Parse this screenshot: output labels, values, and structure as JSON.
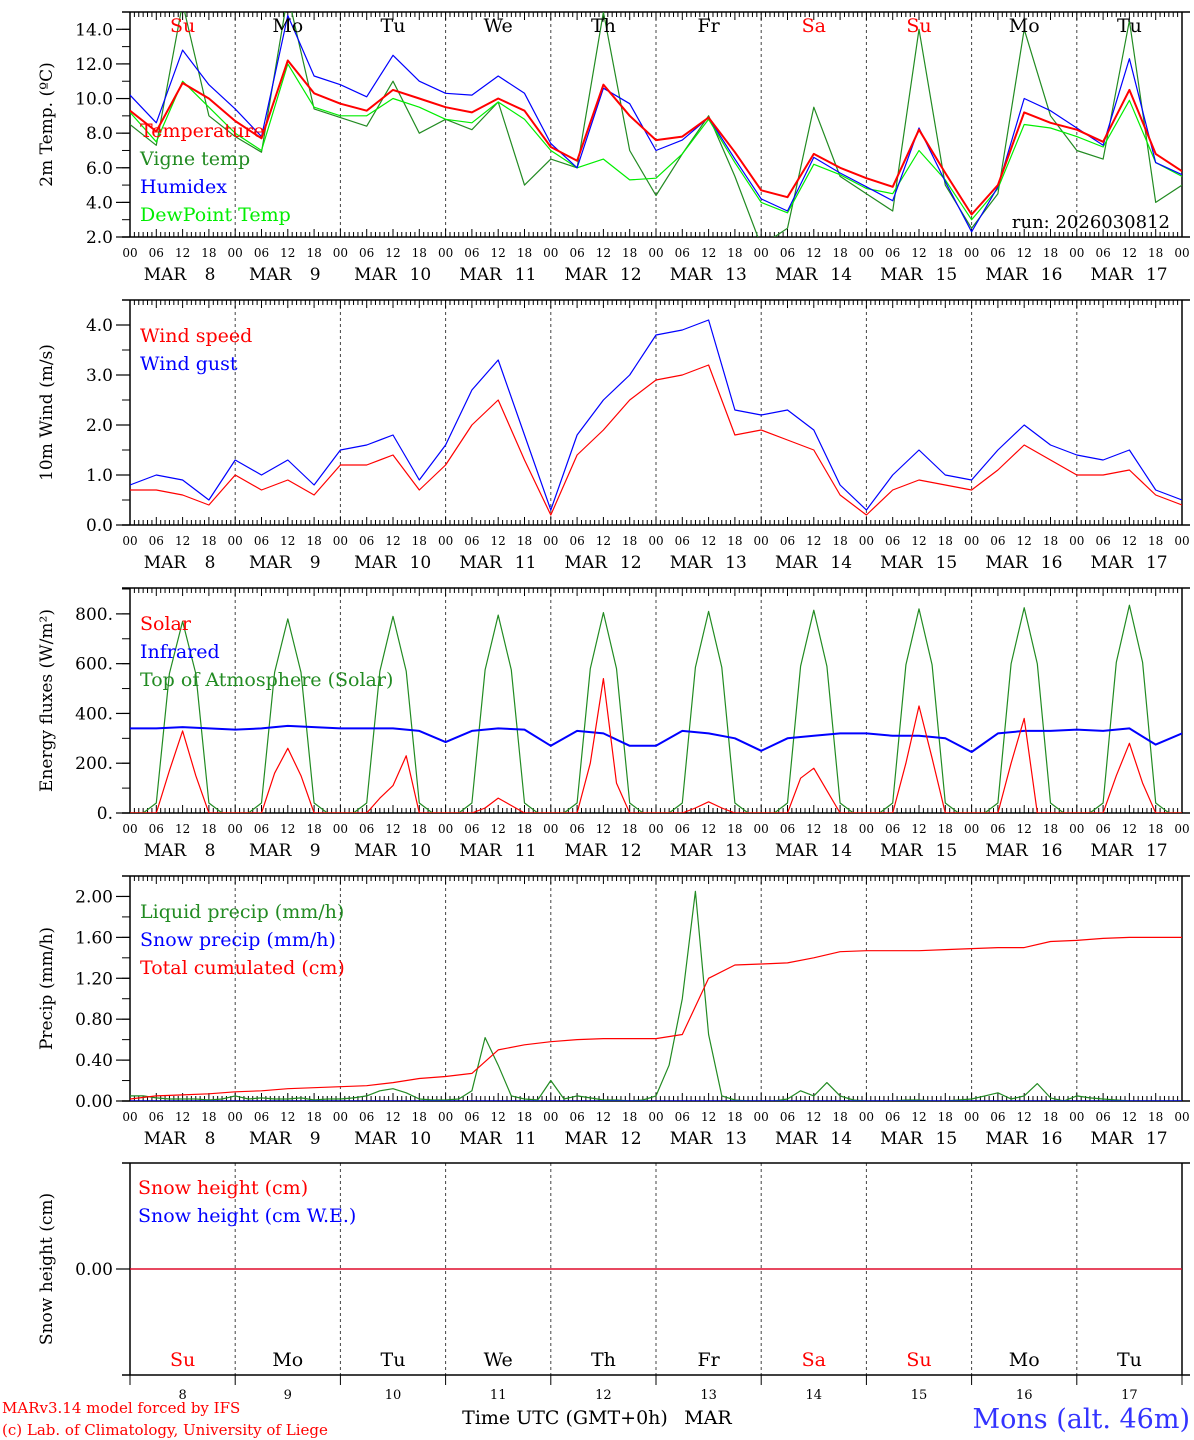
{
  "chart_data": {
    "type": "line",
    "x_axis": {
      "start": "MAR 8 00 UTC",
      "end": "MAR 18 00 UTC",
      "hour_labels": [
        "00",
        "06",
        "12",
        "18"
      ],
      "month": "MAR",
      "days": [
        "8",
        "9",
        "10",
        "11",
        "12",
        "13",
        "14",
        "15",
        "16",
        "17"
      ],
      "last_hour_label": "00",
      "weekdays": [
        "Su",
        "Mo",
        "Tu",
        "We",
        "Th",
        "Fr",
        "Sa",
        "Su",
        "Mo",
        "Tu"
      ],
      "weekend_flags": [
        true,
        false,
        false,
        false,
        false,
        false,
        true,
        true,
        false,
        false
      ],
      "xlabel": "Time UTC (GMT+0h)",
      "xlabel_suffix": "MAR"
    },
    "run_label": "run: 2026030812",
    "footer": {
      "model": "MARv3.14 model forced by IFS",
      "credit": "(c) Lab. of Climatology, University of Liege",
      "station": "Mons (alt. 46m)"
    },
    "colors": {
      "red": "#ff0000",
      "green": "#228b22",
      "blue": "#0000ff",
      "lightgreen": "#00ee00",
      "weekend": "#ff0000",
      "station": "#3333ff"
    },
    "panels": [
      {
        "ylabel": "2m Temp. (ºC)",
        "ylim": [
          2,
          15
        ],
        "yticks": [
          2,
          4,
          6,
          8,
          10,
          12,
          14
        ],
        "ytick_labels": [
          "2.0",
          "4.0",
          "6.0",
          "8.0",
          "10.0",
          "12.0",
          "14.0"
        ],
        "series": [
          {
            "name": "Vigne temp",
            "color": "#228b22",
            "step_hours": 6,
            "values": [
              8.5,
              7.3,
              15.5,
              9.0,
              7.8,
              6.9,
              16,
              9.4,
              8.9,
              8.4,
              11.0,
              8.0,
              8.8,
              8.2,
              9.8,
              5.0,
              6.5,
              6.0,
              15,
              7.0,
              4.4,
              6.8,
              9.0,
              5.5,
              1.5,
              2.5,
              9.5,
              5.5,
              4.5,
              3.5,
              14,
              5.0,
              2.5,
              4.5,
              14,
              9.0,
              7.0,
              6.5,
              14.5,
              4.0,
              5.0
            ]
          },
          {
            "name": "DewPoint Temp",
            "color": "#00ee00",
            "step_hours": 6,
            "values": [
              9.2,
              7.5,
              11.0,
              9.5,
              8.0,
              7.0,
              12.0,
              9.5,
              9.0,
              9.0,
              10.0,
              9.5,
              8.8,
              8.6,
              9.8,
              8.8,
              7.0,
              6.0,
              6.5,
              5.3,
              5.4,
              6.8,
              8.8,
              6.3,
              4.0,
              3.4,
              6.2,
              5.6,
              4.8,
              4.5,
              7.0,
              5.3,
              3.0,
              4.8,
              8.5,
              8.3,
              7.8,
              7.2,
              9.9,
              6.3,
              5.5
            ]
          },
          {
            "name": "Humidex",
            "color": "#0000ff",
            "step_hours": 6,
            "values": [
              10.2,
              8.6,
              12.8,
              10.8,
              9.4,
              7.8,
              14.8,
              11.3,
              10.8,
              10.1,
              12.5,
              11.0,
              10.3,
              10.2,
              11.3,
              10.3,
              7.4,
              6.0,
              10.6,
              9.7,
              7.0,
              7.6,
              8.9,
              6.5,
              4.2,
              3.5,
              6.6,
              5.7,
              4.9,
              4.1,
              8.3,
              5.2,
              2.3,
              4.9,
              10.0,
              9.3,
              8.3,
              7.3,
              12.3,
              6.3,
              5.6
            ]
          },
          {
            "name": "Temperature",
            "color": "#ff0000",
            "step_hours": 6,
            "width": 2,
            "values": [
              9.3,
              8.1,
              10.9,
              10.0,
              8.7,
              7.7,
              12.2,
              10.3,
              9.7,
              9.3,
              10.5,
              10.0,
              9.5,
              9.2,
              10.0,
              9.3,
              7.2,
              6.4,
              10.8,
              9.0,
              7.6,
              7.8,
              8.9,
              6.9,
              4.7,
              4.3,
              6.8,
              6.0,
              5.4,
              4.9,
              8.2,
              5.7,
              3.3,
              5.0,
              9.2,
              8.6,
              8.2,
              7.5,
              10.5,
              6.8,
              5.8
            ]
          }
        ],
        "legend": [
          {
            "label": "Temperature",
            "color": "#ff0000"
          },
          {
            "label": "Vigne temp",
            "color": "#228b22"
          },
          {
            "label": "Humidex",
            "color": "#0000ff"
          },
          {
            "label": "DewPoint Temp",
            "color": "#00ee00"
          }
        ]
      },
      {
        "ylabel": "10m Wind (m/s)",
        "ylim": [
          0,
          4.5
        ],
        "yticks": [
          0,
          1,
          2,
          3,
          4
        ],
        "ytick_labels": [
          "0.0",
          "1.0",
          "2.0",
          "3.0",
          "4.0"
        ],
        "series": [
          {
            "name": "Wind gust",
            "color": "#0000ff",
            "step_hours": 6,
            "values": [
              0.8,
              1.0,
              0.9,
              0.5,
              1.3,
              1.0,
              1.3,
              0.8,
              1.5,
              1.6,
              1.8,
              0.9,
              1.6,
              2.7,
              3.3,
              1.8,
              0.3,
              1.8,
              2.5,
              3.0,
              3.8,
              3.9,
              4.1,
              2.3,
              2.2,
              2.3,
              1.9,
              0.8,
              0.3,
              1.0,
              1.5,
              1.0,
              0.9,
              1.5,
              2.0,
              1.6,
              1.4,
              1.3,
              1.5,
              0.7,
              0.5
            ]
          },
          {
            "name": "Wind speed",
            "color": "#ff0000",
            "step_hours": 6,
            "values": [
              0.7,
              0.7,
              0.6,
              0.4,
              1.0,
              0.7,
              0.9,
              0.6,
              1.2,
              1.2,
              1.4,
              0.7,
              1.2,
              2.0,
              2.5,
              1.3,
              0.2,
              1.4,
              1.9,
              2.5,
              2.9,
              3.0,
              3.2,
              1.8,
              1.9,
              1.7,
              1.5,
              0.6,
              0.2,
              0.7,
              0.9,
              0.8,
              0.7,
              1.1,
              1.6,
              1.3,
              1.0,
              1.0,
              1.1,
              0.6,
              0.4
            ]
          }
        ],
        "legend": [
          {
            "label": "Wind speed",
            "color": "#ff0000"
          },
          {
            "label": "Wind gust",
            "color": "#0000ff"
          }
        ]
      },
      {
        "ylabel": "Energy fluxes (W/m²)",
        "ylim": [
          0,
          904
        ],
        "yticks": [
          0,
          200,
          400,
          600,
          800
        ],
        "ytick_labels": [
          "0.",
          "200.",
          "400.",
          "600.",
          "800."
        ],
        "series": [
          {
            "name": "Top of Atmosphere (Solar)",
            "color": "#228b22",
            "step_hours": 3,
            "values": [
              0,
              0,
              40,
              560,
              770,
              560,
              40,
              0,
              0,
              0,
              40,
              565,
              780,
              565,
              40,
              0,
              0,
              0,
              40,
              570,
              790,
              570,
              40,
              0,
              0,
              0,
              40,
              575,
              795,
              575,
              40,
              0,
              0,
              0,
              40,
              580,
              805,
              580,
              40,
              0,
              0,
              0,
              40,
              585,
              810,
              585,
              40,
              0,
              0,
              0,
              40,
              590,
              815,
              590,
              40,
              0,
              0,
              0,
              40,
              595,
              820,
              595,
              40,
              0,
              0,
              0,
              40,
              600,
              825,
              600,
              40,
              0,
              0,
              0,
              40,
              605,
              835,
              605,
              40,
              0,
              0
            ]
          },
          {
            "name": "Infrared",
            "color": "#0000ff",
            "step_hours": 6,
            "width": 2,
            "values": [
              340,
              340,
              345,
              340,
              335,
              340,
              350,
              345,
              340,
              340,
              340,
              330,
              285,
              330,
              340,
              335,
              270,
              330,
              320,
              270,
              270,
              330,
              320,
              300,
              250,
              300,
              310,
              320,
              320,
              310,
              310,
              300,
              245,
              320,
              330,
              330,
              335,
              330,
              340,
              275,
              320
            ]
          },
          {
            "name": "Solar",
            "color": "#ff0000",
            "step_hours": 3,
            "values": [
              0,
              0,
              0,
              170,
              330,
              150,
              0,
              0,
              0,
              0,
              0,
              160,
              260,
              150,
              0,
              0,
              0,
              0,
              0,
              60,
              110,
              230,
              0,
              0,
              0,
              0,
              0,
              20,
              60,
              30,
              0,
              0,
              0,
              0,
              0,
              200,
              540,
              120,
              0,
              0,
              0,
              0,
              0,
              20,
              45,
              20,
              0,
              0,
              0,
              0,
              0,
              140,
              180,
              90,
              0,
              0,
              0,
              0,
              0,
              200,
              430,
              220,
              0,
              0,
              0,
              0,
              0,
              200,
              380,
              0,
              0,
              0,
              0,
              0,
              0,
              150,
              280,
              120,
              0,
              0,
              0
            ]
          }
        ],
        "legend": [
          {
            "label": "Solar",
            "color": "#ff0000"
          },
          {
            "label": "Infrared",
            "color": "#0000ff"
          },
          {
            "label": "Top of Atmosphere (Solar)",
            "color": "#228b22"
          }
        ]
      },
      {
        "ylabel": "Precip (mm/h)",
        "ylim": [
          0,
          2.2
        ],
        "yticks": [
          0,
          0.4,
          0.8,
          1.2,
          1.6,
          2.0
        ],
        "ytick_labels": [
          "0.00",
          "0.40",
          "0.80",
          "1.20",
          "1.60",
          "2.00"
        ],
        "series": [
          {
            "name": "Liquid precip (mm/h)",
            "color": "#228b22",
            "step_hours": 3,
            "values": [
              0.05,
              0.05,
              0.03,
              0.02,
              0.02,
              0.02,
              0.01,
              0.02,
              0.05,
              0.02,
              0.03,
              0.02,
              0.02,
              0.03,
              0.01,
              0.02,
              0.02,
              0.03,
              0.05,
              0.1,
              0.12,
              0.08,
              0.02,
              0.01,
              0.01,
              0.02,
              0.1,
              0.62,
              0.35,
              0.05,
              0.02,
              0.01,
              0.2,
              0.02,
              0.05,
              0.03,
              0.01,
              0.01,
              0.0,
              0.01,
              0.05,
              0.35,
              1.0,
              2.05,
              0.65,
              0.05,
              0.01,
              0.0,
              0.0,
              0.0,
              0.02,
              0.1,
              0.05,
              0.18,
              0.05,
              0.01,
              0,
              0,
              0,
              0.01,
              0.01,
              0,
              0,
              0.01,
              0.02,
              0.05,
              0.08,
              0.02,
              0.05,
              0.17,
              0.03,
              0.0,
              0.05,
              0.03,
              0.02,
              0.01,
              0,
              0,
              0,
              0,
              0
            ]
          },
          {
            "name": "Snow precip (mm/h)",
            "color": "#0000ff",
            "step_hours": 24,
            "values": [
              0,
              0,
              0,
              0,
              0,
              0,
              0,
              0,
              0,
              0,
              0
            ]
          },
          {
            "name": "Total cumulated (cm)",
            "color": "#ff0000",
            "step_hours": 6,
            "values": [
              0.02,
              0.05,
              0.06,
              0.07,
              0.09,
              0.1,
              0.12,
              0.13,
              0.14,
              0.15,
              0.18,
              0.22,
              0.24,
              0.27,
              0.5,
              0.55,
              0.58,
              0.6,
              0.61,
              0.61,
              0.61,
              0.65,
              1.2,
              1.33,
              1.34,
              1.35,
              1.4,
              1.46,
              1.47,
              1.47,
              1.47,
              1.48,
              1.49,
              1.5,
              1.5,
              1.56,
              1.57,
              1.59,
              1.6,
              1.6,
              1.6
            ]
          }
        ],
        "legend": [
          {
            "label": "Liquid precip (mm/h)",
            "color": "#228b22"
          },
          {
            "label": "Snow precip (mm/h)",
            "color": "#0000ff"
          },
          {
            "label": "Total cumulated (cm)",
            "color": "#ff0000"
          }
        ]
      },
      {
        "ylabel": "Snow height (cm)",
        "ylim": [
          -1,
          1
        ],
        "yticks": [
          0
        ],
        "ytick_labels": [
          "0.00"
        ],
        "series": [
          {
            "name": "Snow height (cm W.E.)",
            "color": "#0000ff",
            "step_hours": 24,
            "values": [
              0,
              0,
              0,
              0,
              0,
              0,
              0,
              0,
              0,
              0,
              0
            ]
          },
          {
            "name": "Snow height (cm)",
            "color": "#ff0000",
            "step_hours": 24,
            "values": [
              0,
              0,
              0,
              0,
              0,
              0,
              0,
              0,
              0,
              0,
              0
            ]
          }
        ],
        "legend": [
          {
            "label": "Snow height (cm)",
            "color": "#ff0000"
          },
          {
            "label": "Snow height (cm W.E.)",
            "color": "#0000ff"
          }
        ]
      }
    ]
  }
}
